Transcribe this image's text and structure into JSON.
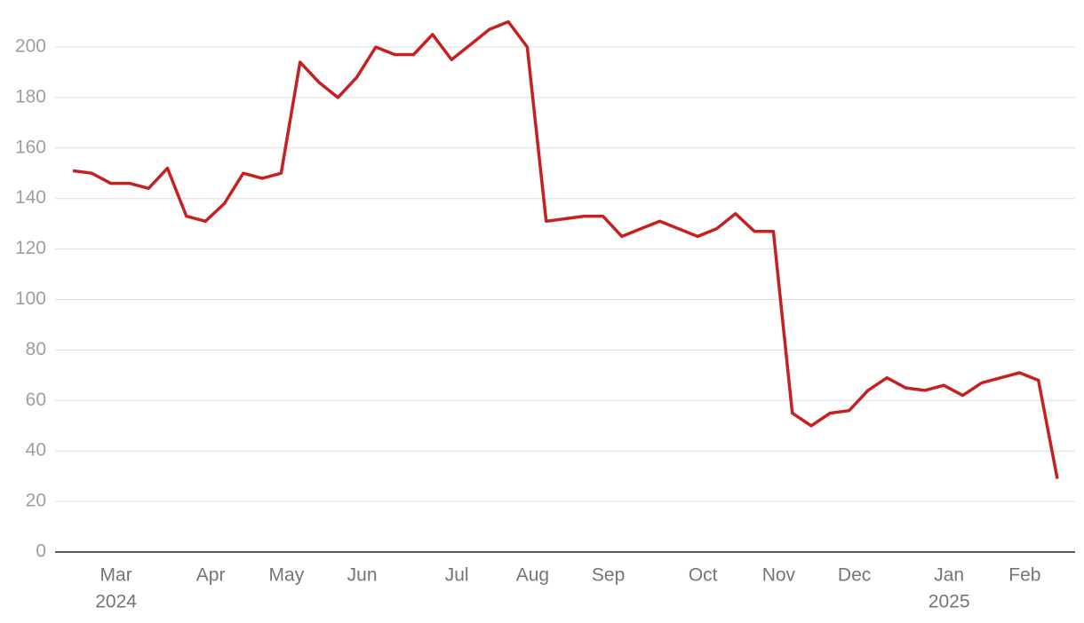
{
  "chart_data": {
    "type": "line",
    "categories": [
      null,
      null,
      "Mar",
      null,
      null,
      null,
      null,
      "Apr",
      null,
      null,
      null,
      "May",
      null,
      null,
      null,
      "Jun",
      null,
      null,
      null,
      null,
      "Jul",
      null,
      null,
      null,
      "Aug",
      null,
      null,
      null,
      "Sep",
      null,
      null,
      null,
      null,
      "Oct",
      null,
      null,
      null,
      "Nov",
      null,
      null,
      null,
      "Dec",
      null,
      null,
      null,
      null,
      "Jan",
      null,
      null,
      null,
      "Feb",
      null,
      null
    ],
    "x_sublabels": [
      null,
      null,
      "2024",
      null,
      null,
      null,
      null,
      null,
      null,
      null,
      null,
      null,
      null,
      null,
      null,
      null,
      null,
      null,
      null,
      null,
      null,
      null,
      null,
      null,
      null,
      null,
      null,
      null,
      null,
      null,
      null,
      null,
      null,
      null,
      null,
      null,
      null,
      null,
      null,
      null,
      null,
      null,
      null,
      null,
      null,
      null,
      "2025",
      null,
      null,
      null,
      null,
      null,
      null
    ],
    "series": [
      {
        "color": "#c62020",
        "values": [
          151,
          150,
          146,
          146,
          144,
          152,
          133,
          131,
          138,
          150,
          148,
          150,
          194,
          186,
          180,
          188,
          200,
          197,
          197,
          205,
          195,
          201,
          207,
          210,
          200,
          131,
          132,
          133,
          133,
          125,
          128,
          131,
          128,
          125,
          128,
          134,
          127,
          127,
          55,
          50,
          55,
          56,
          64,
          69,
          65,
          64,
          66,
          62,
          67,
          69,
          71,
          68,
          29
        ]
      }
    ],
    "ylim": [
      0,
      215
    ],
    "yticks": [
      0,
      20,
      40,
      60,
      80,
      100,
      120,
      140,
      160,
      180,
      200
    ],
    "grid": true
  }
}
